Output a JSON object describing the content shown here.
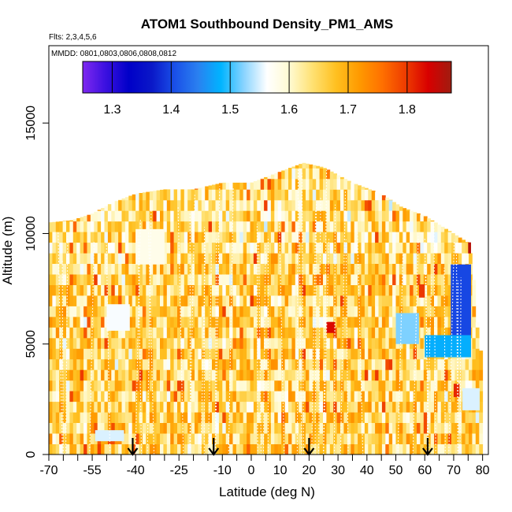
{
  "chart_data": {
    "type": "heatmap",
    "title": "ATOM1 Southbound Density_PM1_AMS",
    "annotations": [
      "Flts: 2,3,4,5,6",
      "MMDD: 0801,0803,0806,0808,0812"
    ],
    "xlabel": "Latitude (deg N)",
    "ylabel": "Altitude (m)",
    "xlim": [
      -70,
      82
    ],
    "ylim": [
      0,
      18500
    ],
    "xticks": [
      -70,
      -55,
      -40,
      -25,
      -10,
      0,
      10,
      20,
      30,
      40,
      50,
      60,
      70,
      80
    ],
    "xtick_labels": [
      "-70",
      "-55",
      "-40",
      "-25",
      "-10",
      "0",
      "10",
      "20",
      "30",
      "40",
      "50",
      "60",
      "70",
      "80"
    ],
    "xminor_ticks": [
      -65,
      -60,
      -50,
      -45,
      -35,
      -30,
      -20,
      -15,
      -5,
      5,
      15,
      25,
      35,
      45,
      55,
      65,
      75
    ],
    "yticks": [
      0,
      5000,
      10000,
      15000
    ],
    "ytick_labels": [
      "0",
      "5000",
      "10000",
      "15000"
    ],
    "colorbar": {
      "range": [
        1.25,
        1.875
      ],
      "ticks": [
        1.3,
        1.4,
        1.5,
        1.6,
        1.7,
        1.8
      ],
      "tick_labels": [
        "1.3",
        "1.4",
        "1.5",
        "1.6",
        "1.7",
        "1.8"
      ],
      "colors": [
        "#7f28f0",
        "#3a10e0",
        "#0000c8",
        "#0a18c8",
        "#1a50e8",
        "#2a80f0",
        "#00b4ff",
        "#8ad4ff",
        "#ffffff",
        "#fffad0",
        "#ffe070",
        "#ffc020",
        "#ff9a00",
        "#ff7000",
        "#ee3c00",
        "#d80000",
        "#a01c10"
      ]
    },
    "column_tops": [
      {
        "lat": -70,
        "top": 10500
      },
      {
        "lat": -62,
        "top": 10600
      },
      {
        "lat": -55,
        "top": 10900
      },
      {
        "lat": -48,
        "top": 11400
      },
      {
        "lat": -40,
        "top": 11800
      },
      {
        "lat": -30,
        "top": 12000
      },
      {
        "lat": -20,
        "top": 12000
      },
      {
        "lat": -10,
        "top": 12300
      },
      {
        "lat": 0,
        "top": 12300
      },
      {
        "lat": 10,
        "top": 12800
      },
      {
        "lat": 18,
        "top": 13200
      },
      {
        "lat": 25,
        "top": 13000
      },
      {
        "lat": 35,
        "top": 12300
      },
      {
        "lat": 45,
        "top": 11800
      },
      {
        "lat": 52,
        "top": 11200
      },
      {
        "lat": 60,
        "top": 10800
      },
      {
        "lat": 70,
        "top": 10000
      },
      {
        "lat": 76,
        "top": 9500
      },
      {
        "lat": 79,
        "top": 4700
      }
    ],
    "blue_patches": [
      {
        "lat0": 69,
        "lat1": 76,
        "alt0": 5400,
        "alt1": 8600,
        "value": 1.4
      },
      {
        "lat0": 60,
        "lat1": 76,
        "alt0": 4400,
        "alt1": 5400,
        "value": 1.48
      },
      {
        "lat0": 73,
        "lat1": 79,
        "alt0": 2000,
        "alt1": 3000,
        "value": 1.55
      },
      {
        "lat0": -40,
        "lat1": -30,
        "alt0": 8600,
        "alt1": 10200,
        "value": 1.58
      },
      {
        "lat0": -50,
        "lat1": -42,
        "alt0": 5600,
        "alt1": 6800,
        "value": 1.56
      },
      {
        "lat0": 50,
        "lat1": 58,
        "alt0": 5000,
        "alt1": 6400,
        "value": 1.52
      },
      {
        "lat0": -54,
        "lat1": -44,
        "alt0": 600,
        "alt1": 1100,
        "value": 1.55
      }
    ],
    "red_patches": [
      {
        "lat0": 26,
        "lat1": 29,
        "alt0": 5500,
        "alt1": 6000,
        "value": 1.83
      },
      {
        "lat0": 58,
        "lat1": 60,
        "alt0": 7100,
        "alt1": 7700,
        "value": 1.8
      },
      {
        "lat0": 70,
        "lat1": 72,
        "alt0": 2600,
        "alt1": 3200,
        "value": 1.81
      },
      {
        "lat0": 75,
        "lat1": 76,
        "alt0": 9100,
        "alt1": 9600,
        "value": 1.86
      }
    ],
    "arrows_lat": [
      -41,
      -13,
      20,
      61
    ]
  }
}
